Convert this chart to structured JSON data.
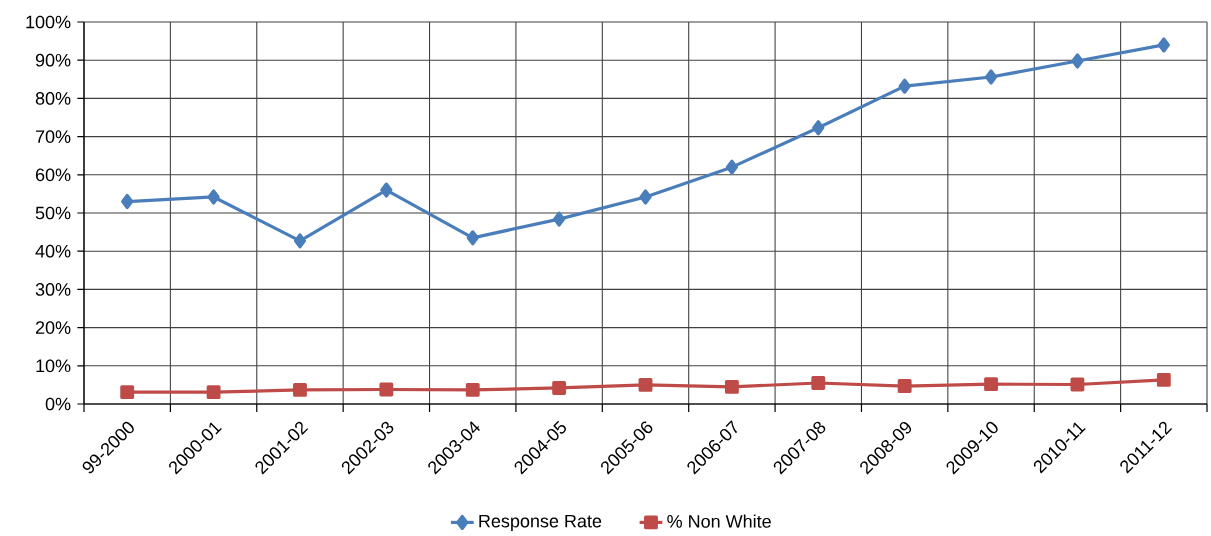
{
  "chart_data": {
    "type": "line",
    "categories": [
      "99-2000",
      "2000-01",
      "2001-02",
      "2002-03",
      "2003-04",
      "2004-05",
      "2005-06",
      "2006-07",
      "2007-08",
      "2008-09",
      "2009-10",
      "2010-11",
      "2011-12"
    ],
    "series": [
      {
        "name": "Response Rate",
        "color": "#4a7ebb",
        "marker": "diamond",
        "values": [
          53,
          54.2,
          42.7,
          56,
          43.5,
          48.4,
          54.2,
          62,
          72.3,
          83.2,
          85.6,
          89.8,
          94
        ]
      },
      {
        "name": "% Non White",
        "color": "#be4b48",
        "marker": "square",
        "values": [
          3.1,
          3.1,
          3.7,
          3.8,
          3.7,
          4.2,
          5,
          4.5,
          5.5,
          4.7,
          5.2,
          5.1,
          6.3
        ]
      }
    ],
    "ylim": [
      0,
      100
    ],
    "yticks": [
      {
        "value": 0,
        "label": "0%"
      },
      {
        "value": 10,
        "label": "10%"
      },
      {
        "value": 20,
        "label": "20%"
      },
      {
        "value": 30,
        "label": "30%"
      },
      {
        "value": 40,
        "label": "40%"
      },
      {
        "value": 50,
        "label": "50%"
      },
      {
        "value": 60,
        "label": "60%"
      },
      {
        "value": 70,
        "label": "70%"
      },
      {
        "value": 80,
        "label": "80%"
      },
      {
        "value": 90,
        "label": "90%"
      },
      {
        "value": 100,
        "label": "100%"
      }
    ],
    "grid": true,
    "legend": "bottom",
    "line_style": "solid"
  }
}
